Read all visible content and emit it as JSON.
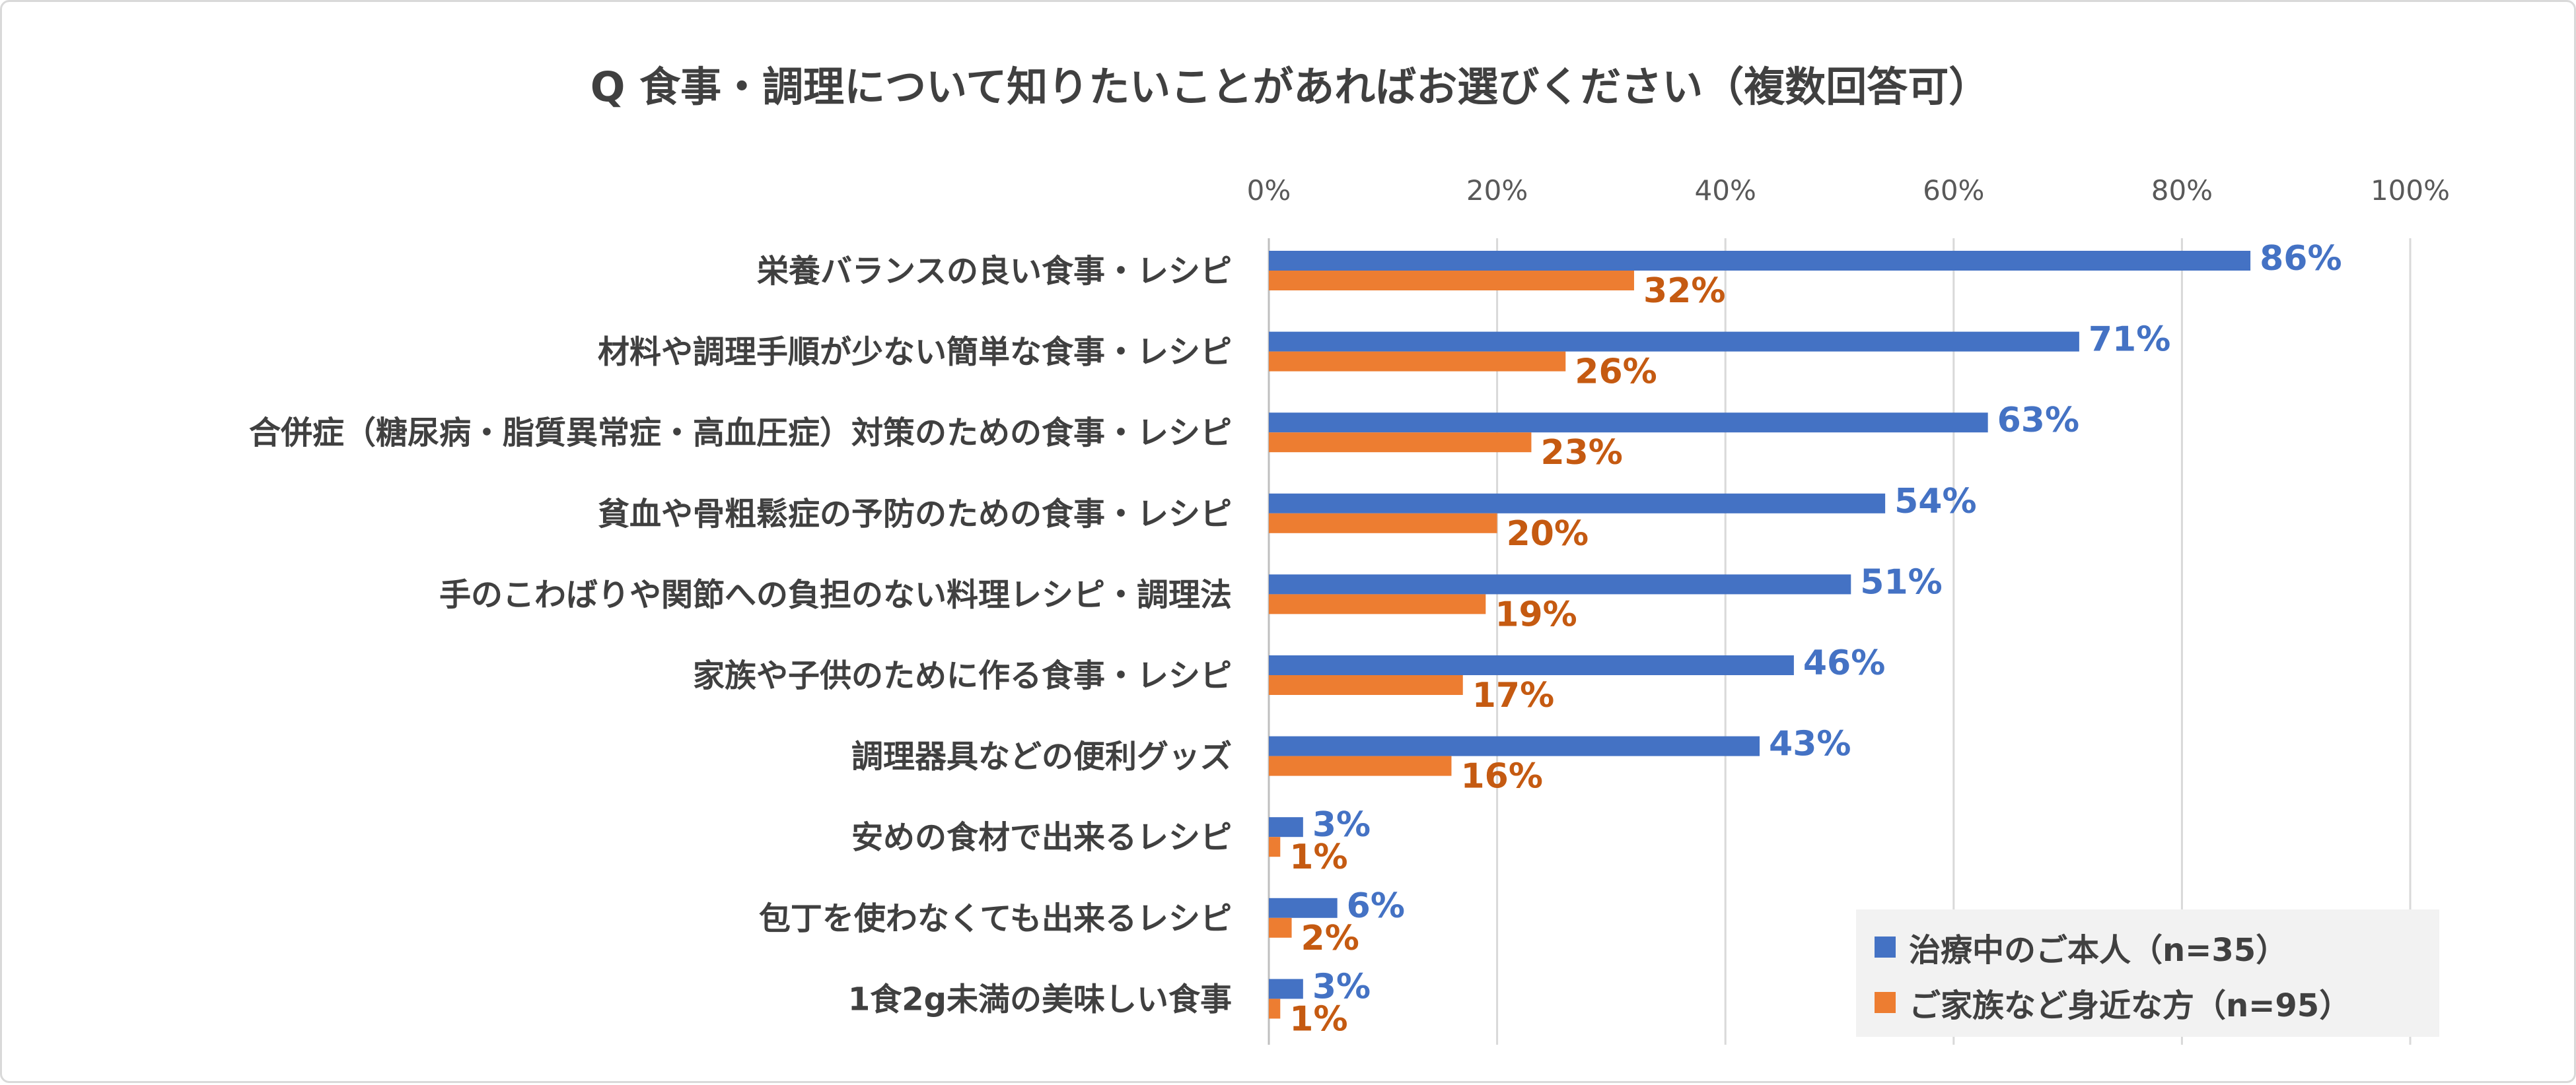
{
  "chart_data": {
    "type": "bar",
    "orientation": "horizontal",
    "title": "Q 食事・調理について知りたいことがあればお選びください（複数回答可）",
    "categories": [
      "栄養バランスの良い食事・レシピ",
      "材料や調理手順が少ない簡単な食事・レシピ",
      "合併症（糖尿病・脂質異常症・高血圧症）対策のための食事・レシピ",
      "貧血や骨粗鬆症の予防のための食事・レシピ",
      "手のこわばりや関節への負担のない料理レシピ・調理法",
      "家族や子供のために作る食事・レシピ",
      "調理器具などの便利グッズ",
      "安めの食材で出来るレシピ",
      "包丁を使わなくても出来るレシピ",
      "1食2g未満の美味しい食事"
    ],
    "series": [
      {
        "name": "治療中のご本人（n=35）",
        "color": "#4472c4",
        "label_color": "#4472c4",
        "values": [
          86,
          71,
          63,
          54,
          51,
          46,
          43,
          3,
          6,
          3
        ]
      },
      {
        "name": "ご家族など身近な方（n=95）",
        "color": "#ed7d31",
        "label_color": "#c55a11",
        "values": [
          32,
          26,
          23,
          20,
          19,
          17,
          16,
          1,
          2,
          1
        ]
      }
    ],
    "xlim": [
      0,
      100
    ],
    "xticks": [
      0,
      20,
      40,
      60,
      80,
      100
    ],
    "tick_suffix": "%",
    "value_suffix": "%",
    "axis_position": "top",
    "grid": true,
    "legend_position": "bottom-right",
    "xlabel": "",
    "ylabel": ""
  }
}
